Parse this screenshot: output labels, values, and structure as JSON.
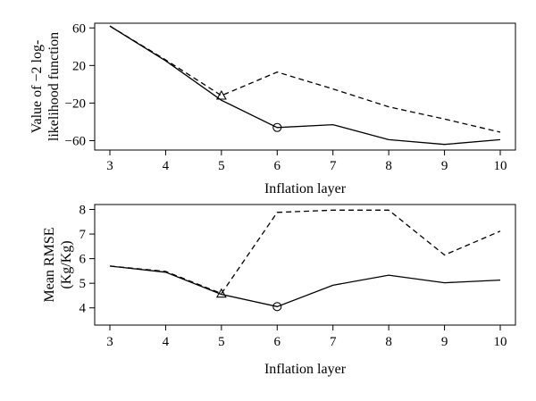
{
  "chart_data": [
    {
      "type": "line",
      "xlabel": "Inflation layer",
      "ylabel_lines": [
        "Value of −2 log-",
        "likelihood function"
      ],
      "x": [
        3,
        4,
        5,
        6,
        7,
        8,
        9,
        10
      ],
      "xlim": [
        3,
        10
      ],
      "ylim": [
        -70,
        65
      ],
      "yticks": [
        60,
        20,
        -20,
        -60
      ],
      "ytick_labels": [
        "60",
        "20",
        "−20",
        "−60"
      ],
      "grid": false,
      "series": [
        {
          "style": "solid",
          "values": [
            62,
            25,
            -17,
            -46,
            -43,
            -59,
            -64,
            -59
          ]
        },
        {
          "style": "dashed",
          "values": [
            62,
            26,
            -12,
            13,
            -5,
            -24,
            -37,
            -51
          ]
        }
      ],
      "markers": [
        {
          "shape": "triangle",
          "x": 5,
          "y": -12
        },
        {
          "shape": "circle",
          "x": 6,
          "y": -46
        }
      ]
    },
    {
      "type": "line",
      "xlabel": "Inflation layer",
      "ylabel_lines": [
        "Mean RMSE",
        "(Kg/Kg)"
      ],
      "x": [
        3,
        4,
        5,
        6,
        7,
        8,
        9,
        10
      ],
      "xlim": [
        3,
        10
      ],
      "ylim": [
        3.3,
        8.2
      ],
      "yticks": [
        8,
        7,
        6,
        5,
        4
      ],
      "ytick_labels": [
        "8",
        "7",
        "6",
        "5",
        "4"
      ],
      "grid": false,
      "series": [
        {
          "style": "solid",
          "values": [
            5.7,
            5.45,
            4.55,
            4.05,
            4.92,
            5.33,
            5.02,
            5.13
          ]
        },
        {
          "style": "dashed",
          "values": [
            5.7,
            5.48,
            4.58,
            7.88,
            7.97,
            7.97,
            6.15,
            7.12
          ]
        }
      ],
      "markers": [
        {
          "shape": "triangle",
          "x": 5,
          "y": 4.58
        },
        {
          "shape": "circle",
          "x": 6,
          "y": 4.05
        }
      ]
    }
  ]
}
